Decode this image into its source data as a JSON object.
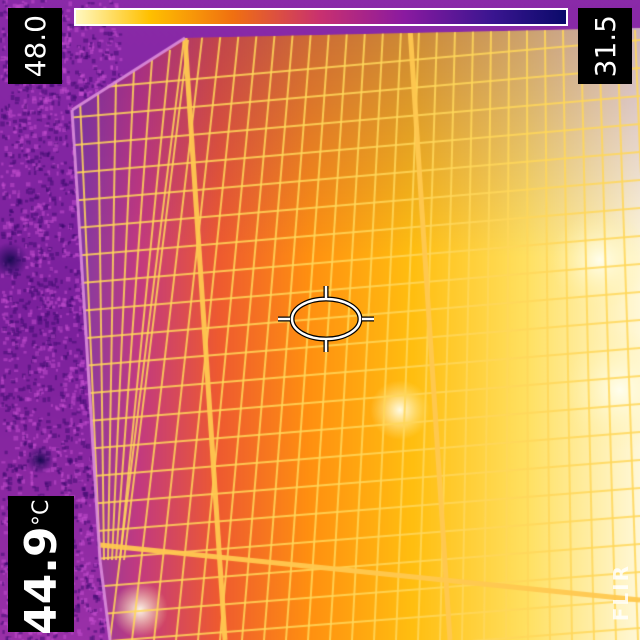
{
  "scale": {
    "max_value": "48.0",
    "min_value": "31.5",
    "palette": [
      "#0a0a6a",
      "#3a1590",
      "#8a1aa0",
      "#c83070",
      "#f07010",
      "#ffc000",
      "#fff8c0"
    ]
  },
  "spot": {
    "value": "44.9",
    "unit": "°C"
  },
  "brand": {
    "logo_text": "FLIR"
  },
  "colors": {
    "cold_background": "#7a20a0",
    "cell_hot": "#ff9a10",
    "cell_warm": "#e05a30",
    "grid_line": "#ffd24a",
    "cell_very_hot": "#ffe9a0"
  }
}
